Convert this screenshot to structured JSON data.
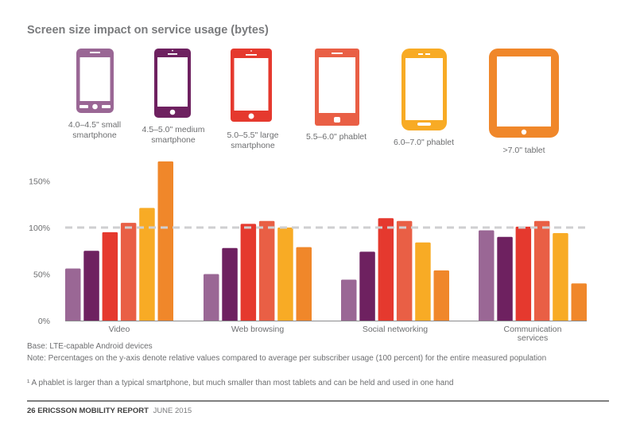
{
  "title": "Screen size impact on service usage (bytes)",
  "devices": [
    {
      "label_line1": "4.0–4.5\" small",
      "label_line2": "smartphone",
      "color": "#9a6795",
      "icon": "small-smartphone-icon"
    },
    {
      "label_line1": "4.5–5.0\" medium",
      "label_line2": "smartphone",
      "color": "#6e2160",
      "icon": "medium-smartphone-icon"
    },
    {
      "label_line1": "5.0–5.5\" large",
      "label_line2": "smartphone",
      "color": "#e5392e",
      "icon": "large-smartphone-icon"
    },
    {
      "label_line1": "5.5–6.0\" phablet",
      "label_line2": "",
      "color": "#e95f45",
      "icon": "phablet-icon"
    },
    {
      "label_line1": "6.0–7.0\" phablet",
      "label_line2": "",
      "color": "#f8ab25",
      "icon": "large-phablet-icon"
    },
    {
      "label_line1": ">7.0\" tablet",
      "label_line2": "",
      "color": "#f0872a",
      "icon": "tablet-icon"
    }
  ],
  "chart_data": {
    "type": "bar",
    "title": "Screen size impact on service usage (bytes)",
    "xlabel": "",
    "ylabel": "",
    "ylim": [
      0,
      175
    ],
    "yticks": [
      0,
      50,
      100,
      150
    ],
    "ytick_labels": [
      "0%",
      "50%",
      "100%",
      "150%"
    ],
    "reference_line": {
      "value": 100,
      "style": "dashed"
    },
    "grid": false,
    "legend": "top (device icons)",
    "categories": [
      "Video",
      "Web browsing",
      "Social networking",
      "Communication services"
    ],
    "category_label_lines": [
      [
        "Video"
      ],
      [
        "Web browsing"
      ],
      [
        "Social networking"
      ],
      [
        "Communication",
        "services"
      ]
    ],
    "series": [
      {
        "name": "4.0–4.5\" small smartphone",
        "color": "#9a6795",
        "values": [
          56,
          50,
          44,
          97
        ]
      },
      {
        "name": "4.5–5.0\" medium smartphone",
        "color": "#6e2160",
        "values": [
          75,
          78,
          74,
          90
        ]
      },
      {
        "name": "5.0–5.5\" large smartphone",
        "color": "#e5392e",
        "values": [
          95,
          104,
          110,
          101
        ]
      },
      {
        "name": "5.5–6.0\" phablet",
        "color": "#e95f45",
        "values": [
          105,
          107,
          107,
          107
        ]
      },
      {
        "name": "6.0–7.0\" phablet",
        "color": "#f8ab25",
        "values": [
          121,
          100,
          84,
          94
        ]
      },
      {
        "name": ">7.0\" tablet",
        "color": "#f0872a",
        "values": [
          171,
          79,
          54,
          40
        ]
      }
    ]
  },
  "notes": {
    "base": "Base: LTE-capable Android devices",
    "note": "Note: Percentages on the y-axis denote relative values compared to average per subscriber usage (100 percent) for the entire measured population",
    "footnote": "¹ A phablet is larger than a typical smartphone, but much smaller than most tablets and can be held and used in one hand"
  },
  "footer": {
    "page": "26",
    "report": "ERICSSON MOBILITY REPORT",
    "date": "JUNE 2015"
  }
}
